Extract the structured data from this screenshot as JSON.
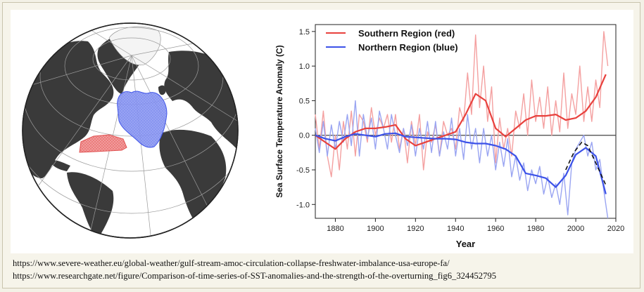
{
  "colors": {
    "southern": "#e8413d",
    "southern_light": "#f4a0a0",
    "northern": "#3c52e8",
    "northern_light": "#9aa5f2",
    "zero_line": "#444444",
    "background": "#f6f4ea"
  },
  "globe": {
    "icon": "globe-map-icon",
    "regions": [
      {
        "name": "Southern Region",
        "color": "red"
      },
      {
        "name": "Northern Region",
        "color": "blue"
      }
    ]
  },
  "chart_data": {
    "type": "line",
    "title": "",
    "xlabel": "Year",
    "ylabel": "Sea Surface Temperature Anomaly (C)",
    "xlim": [
      1870,
      2020
    ],
    "ylim": [
      -1.2,
      1.6
    ],
    "xticks": [
      1880,
      1900,
      1920,
      1940,
      1960,
      1980,
      2000,
      2020
    ],
    "yticks": [
      -1.0,
      -0.5,
      0.0,
      0.5,
      1.0,
      1.5
    ],
    "ytick_labels": [
      "-1.0",
      "-0.5",
      "0.0",
      "0.5",
      "1.0",
      "1.5"
    ],
    "legend": {
      "placement": "top-left",
      "entries": [
        "Southern Region (red)",
        "Northern Region (blue)"
      ]
    },
    "series": [
      {
        "name": "Southern Region (red)",
        "kind": "smoothed",
        "x": [
          1870,
          1875,
          1880,
          1885,
          1890,
          1895,
          1900,
          1905,
          1910,
          1915,
          1920,
          1925,
          1930,
          1935,
          1940,
          1945,
          1950,
          1955,
          1960,
          1965,
          1970,
          1975,
          1980,
          1985,
          1990,
          1995,
          2000,
          2005,
          2010,
          2015
        ],
        "y": [
          0.0,
          -0.1,
          -0.2,
          -0.05,
          0.05,
          0.1,
          0.1,
          0.12,
          0.15,
          -0.05,
          -0.15,
          -0.1,
          -0.05,
          0.0,
          0.05,
          0.3,
          0.6,
          0.5,
          0.1,
          -0.02,
          0.1,
          0.22,
          0.28,
          0.28,
          0.3,
          0.22,
          0.25,
          0.35,
          0.55,
          0.88
        ]
      },
      {
        "name": "Northern Region (blue)",
        "kind": "smoothed",
        "x": [
          1870,
          1875,
          1880,
          1885,
          1890,
          1895,
          1900,
          1905,
          1910,
          1915,
          1920,
          1925,
          1930,
          1935,
          1940,
          1945,
          1950,
          1955,
          1960,
          1965,
          1970,
          1975,
          1980,
          1985,
          1990,
          1995,
          2000,
          2005,
          2010,
          2015
        ],
        "y": [
          0.0,
          -0.05,
          -0.08,
          -0.02,
          0.02,
          0.0,
          -0.02,
          0.02,
          0.03,
          -0.02,
          -0.03,
          -0.04,
          -0.05,
          -0.05,
          -0.06,
          -0.1,
          -0.12,
          -0.12,
          -0.15,
          -0.2,
          -0.3,
          -0.55,
          -0.58,
          -0.62,
          -0.75,
          -0.58,
          -0.28,
          -0.18,
          -0.3,
          -0.85
        ]
      },
      {
        "name": "Southern Region annual",
        "kind": "annual",
        "x": [
          1870,
          1872,
          1874,
          1876,
          1878,
          1880,
          1882,
          1884,
          1886,
          1888,
          1890,
          1892,
          1894,
          1896,
          1898,
          1900,
          1902,
          1904,
          1906,
          1908,
          1910,
          1912,
          1914,
          1916,
          1918,
          1920,
          1922,
          1924,
          1926,
          1928,
          1930,
          1932,
          1934,
          1936,
          1938,
          1940,
          1942,
          1944,
          1946,
          1948,
          1950,
          1952,
          1954,
          1956,
          1958,
          1960,
          1962,
          1964,
          1966,
          1968,
          1970,
          1972,
          1974,
          1976,
          1978,
          1980,
          1982,
          1984,
          1986,
          1988,
          1990,
          1992,
          1994,
          1996,
          1998,
          2000,
          2002,
          2004,
          2006,
          2008,
          2010,
          2012,
          2014,
          2016
        ],
        "y": [
          0.3,
          -0.2,
          0.35,
          -0.3,
          -0.6,
          0.0,
          -0.5,
          0.2,
          -0.2,
          0.35,
          -0.3,
          0.3,
          0.2,
          -0.1,
          0.4,
          0.0,
          0.25,
          0.1,
          0.3,
          -0.1,
          0.3,
          -0.2,
          0.1,
          -0.4,
          0.2,
          -0.15,
          0.3,
          -0.5,
          0.05,
          -0.1,
          0.15,
          -0.3,
          0.2,
          0.0,
          0.1,
          -0.2,
          0.4,
          0.2,
          0.9,
          0.3,
          1.45,
          0.4,
          1.0,
          0.2,
          0.7,
          -0.4,
          0.25,
          -0.2,
          0.1,
          -0.3,
          0.35,
          0.1,
          0.6,
          0.0,
          0.8,
          0.2,
          0.55,
          0.1,
          0.7,
          0.0,
          0.5,
          0.05,
          0.9,
          0.1,
          0.6,
          0.3,
          1.0,
          0.2,
          0.7,
          0.2,
          0.8,
          0.4,
          1.5,
          1.0
        ]
      },
      {
        "name": "Northern Region annual",
        "kind": "annual",
        "x": [
          1870,
          1872,
          1874,
          1876,
          1878,
          1880,
          1882,
          1884,
          1886,
          1888,
          1890,
          1892,
          1894,
          1896,
          1898,
          1900,
          1902,
          1904,
          1906,
          1908,
          1910,
          1912,
          1914,
          1916,
          1918,
          1920,
          1922,
          1924,
          1926,
          1928,
          1930,
          1932,
          1934,
          1936,
          1938,
          1940,
          1942,
          1944,
          1946,
          1948,
          1950,
          1952,
          1954,
          1956,
          1958,
          1960,
          1962,
          1964,
          1966,
          1968,
          1970,
          1972,
          1974,
          1976,
          1978,
          1980,
          1982,
          1984,
          1986,
          1988,
          1990,
          1992,
          1994,
          1996,
          1998,
          2000,
          2002,
          2004,
          2006,
          2008,
          2010,
          2012,
          2014,
          2016
        ],
        "y": [
          0.1,
          -0.25,
          0.2,
          -0.3,
          0.15,
          -0.2,
          0.2,
          -0.1,
          0.3,
          -0.15,
          0.5,
          -0.3,
          0.3,
          -0.05,
          0.25,
          -0.2,
          0.35,
          0.1,
          -0.2,
          0.3,
          0.0,
          -0.25,
          0.1,
          -0.15,
          0.15,
          -0.3,
          0.1,
          -0.2,
          0.2,
          -0.25,
          0.2,
          -0.3,
          0.05,
          -0.2,
          0.25,
          -0.3,
          0.1,
          -0.35,
          0.3,
          -0.2,
          0.1,
          -0.4,
          0.1,
          -0.3,
          0.0,
          -0.5,
          -0.1,
          -0.45,
          -0.05,
          -0.6,
          -0.3,
          -0.65,
          -0.4,
          -0.8,
          -0.5,
          -0.7,
          -0.45,
          -0.85,
          -0.6,
          -0.9,
          -0.7,
          -1.0,
          -0.55,
          -1.15,
          -0.4,
          -0.2,
          -0.1,
          0.0,
          -0.3,
          -0.1,
          -0.5,
          -0.35,
          -0.8,
          -1.2
        ]
      },
      {
        "name": "dashed fit",
        "kind": "dashed",
        "x": [
          1995,
          1999,
          2003,
          2006,
          2010,
          2015
        ],
        "y": [
          -0.5,
          -0.25,
          -0.1,
          -0.15,
          -0.4,
          -0.72
        ]
      }
    ]
  },
  "sources": {
    "line1": "https://www.severe-weather.eu/global-weather/gulf-stream-amoc-circulation-collapse-freshwater-imbalance-usa-europe-fa/",
    "line2": "https://www.researchgate.net/figure/Comparison-of-time-series-of-SST-anomalies-and-the-strength-of-the-overturning_fig6_324452795"
  }
}
